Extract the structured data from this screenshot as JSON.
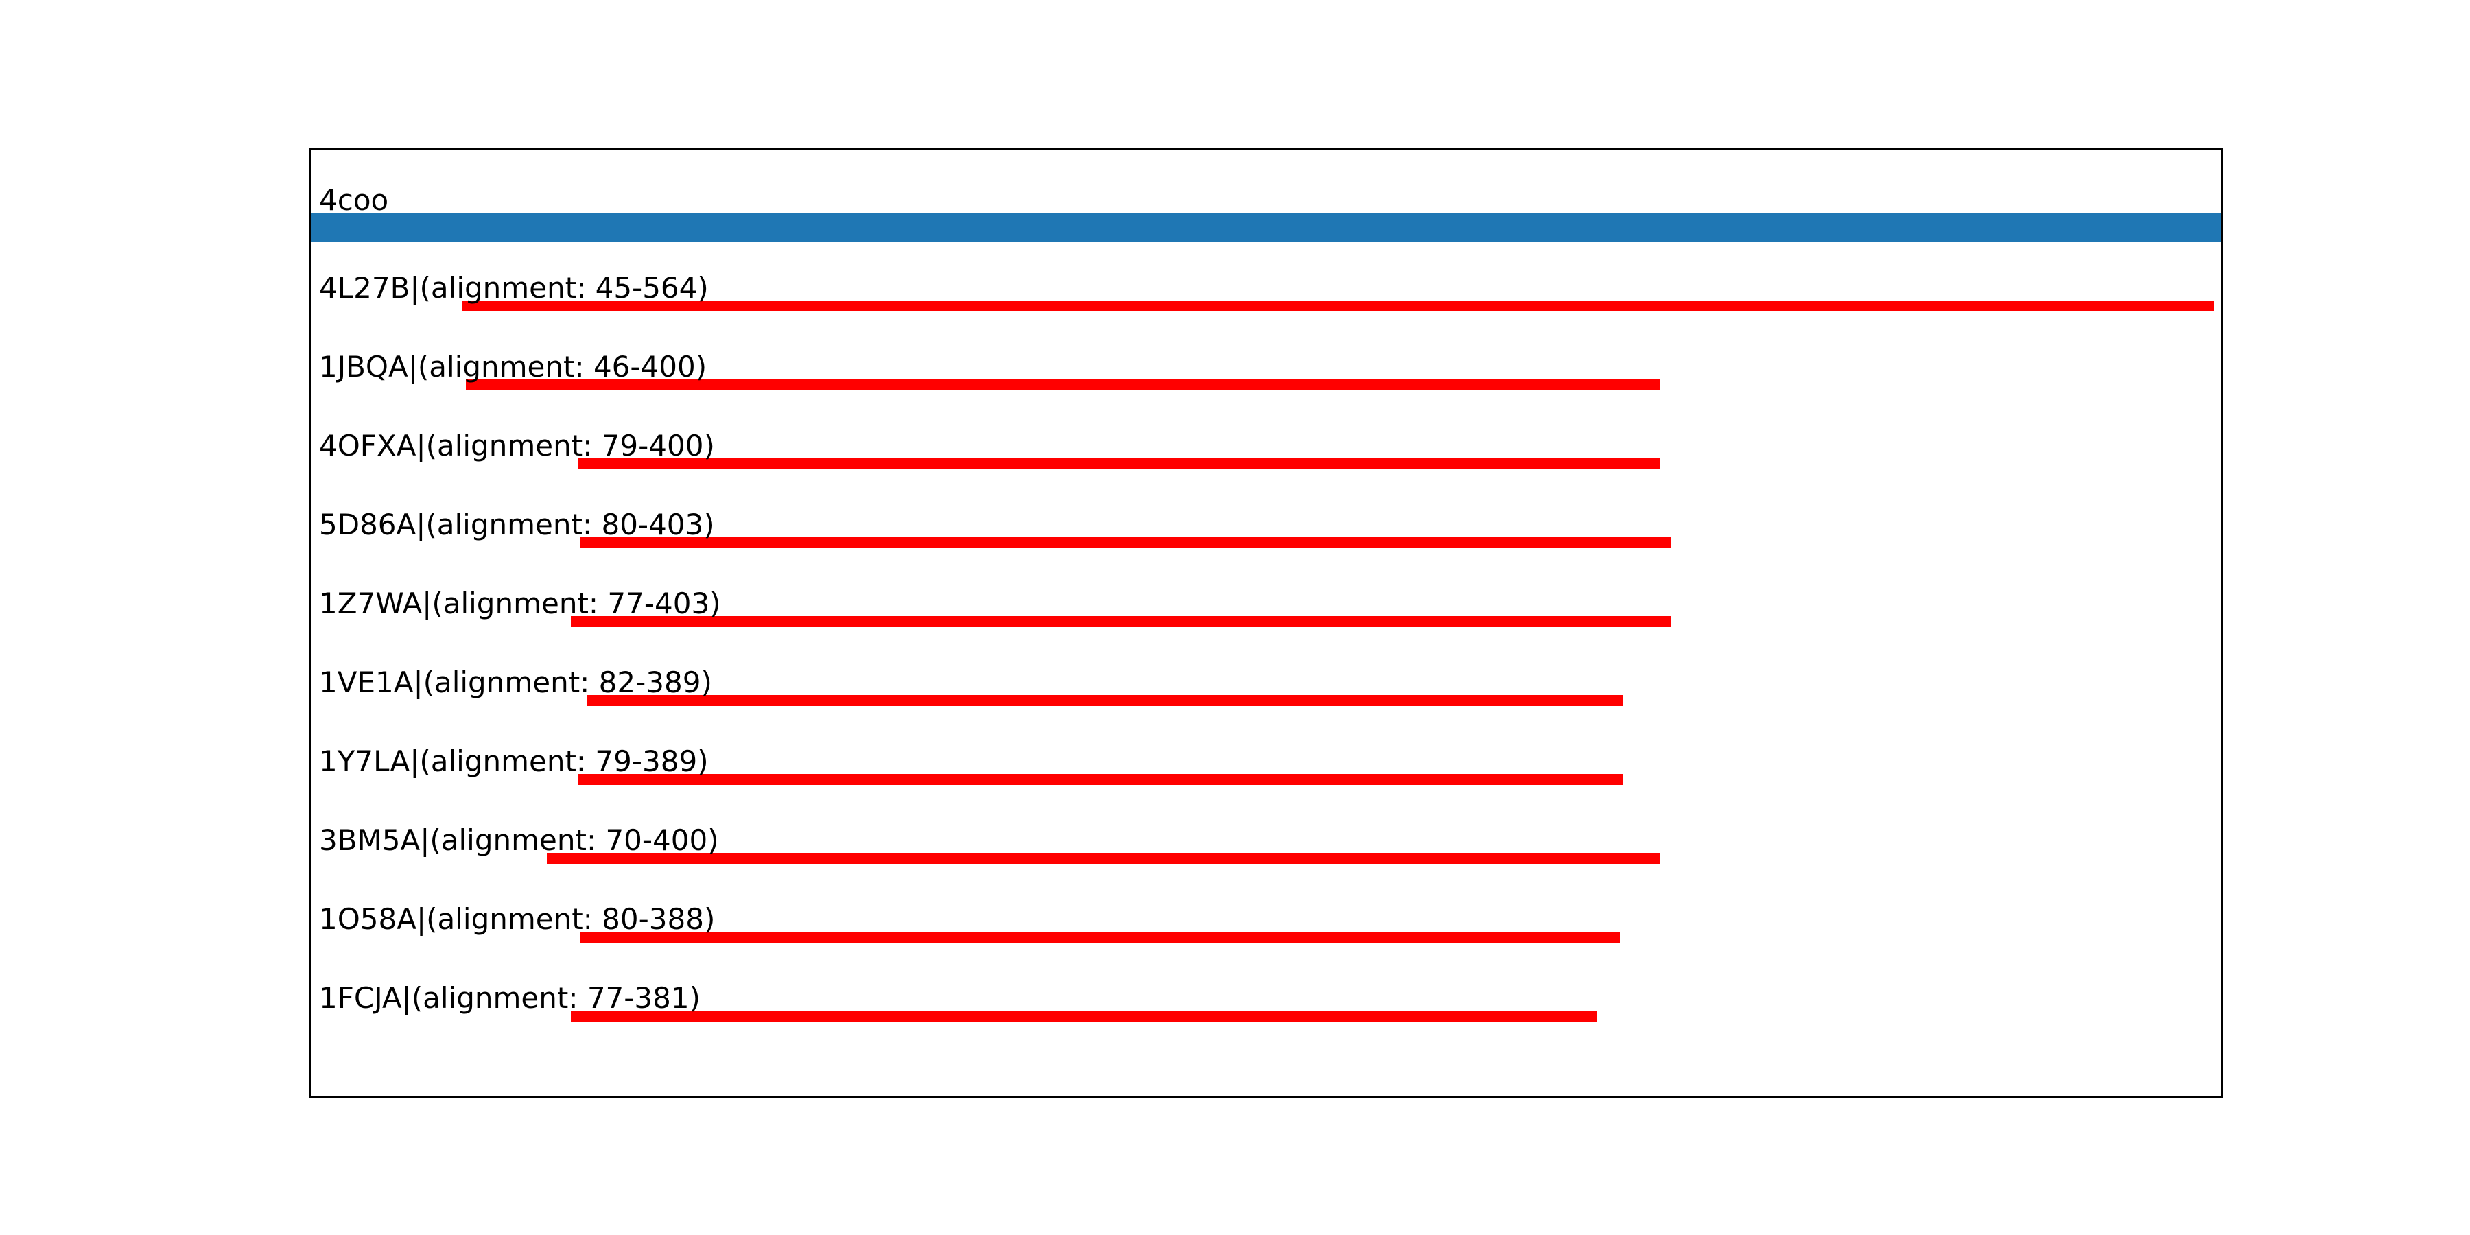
{
  "chart_data": {
    "type": "bar",
    "title": "",
    "xlabel": "",
    "ylabel": "",
    "axis": {
      "xmin": 0,
      "xmax": 566,
      "grid": false,
      "ticks_visible": false,
      "frame": true
    },
    "query": {
      "label": "4coo",
      "start": 0,
      "end": 566
    },
    "hits": [
      {
        "id": "4L27B",
        "label": "4L27B|(alignment: 45-564)",
        "start": 45,
        "end": 564
      },
      {
        "id": "1JBQA",
        "label": "1JBQA|(alignment: 46-400)",
        "start": 46,
        "end": 400
      },
      {
        "id": "4OFXA",
        "label": "4OFXA|(alignment: 79-400)",
        "start": 79,
        "end": 400
      },
      {
        "id": "5D86A",
        "label": "5D86A|(alignment: 80-403)",
        "start": 80,
        "end": 403
      },
      {
        "id": "1Z7WA",
        "label": "1Z7WA|(alignment: 77-403)",
        "start": 77,
        "end": 403
      },
      {
        "id": "1VE1A",
        "label": "1VE1A|(alignment: 82-389)",
        "start": 82,
        "end": 389
      },
      {
        "id": "1Y7LA",
        "label": "1Y7LA|(alignment: 79-389)",
        "start": 79,
        "end": 389
      },
      {
        "id": "3BM5A",
        "label": "3BM5A|(alignment: 70-400)",
        "start": 70,
        "end": 400
      },
      {
        "id": "1O58A",
        "label": "1O58A|(alignment: 80-388)",
        "start": 80,
        "end": 388
      },
      {
        "id": "1FCJA",
        "label": "1FCJA|(alignment: 77-381)",
        "start": 77,
        "end": 381
      }
    ],
    "colors": {
      "query_bar": "#1f77b4",
      "hit_bar": "#ff0000",
      "text": "#000000",
      "border": "#000000",
      "background": "#ffffff"
    }
  }
}
